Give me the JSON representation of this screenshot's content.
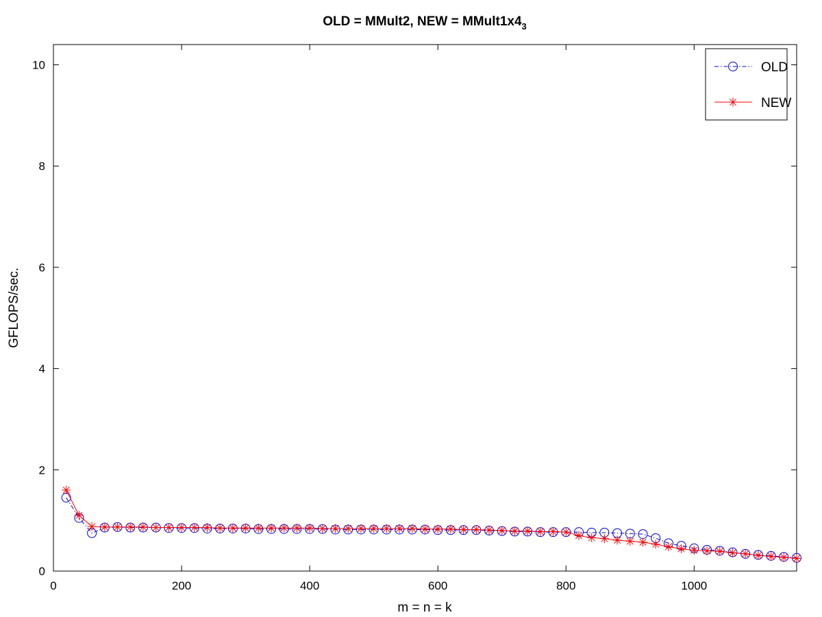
{
  "chart_data": {
    "type": "line",
    "title": "OLD = MMult2, NEW = MMult1x4",
    "title_subscript": "3",
    "xlabel": "m = n = k",
    "ylabel": "GFLOPS/sec.",
    "xlim": [
      0,
      1160
    ],
    "ylim": [
      0,
      10.4
    ],
    "xticks": [
      0,
      200,
      400,
      600,
      800,
      1000
    ],
    "yticks": [
      0,
      2,
      4,
      6,
      8,
      10
    ],
    "grid": false,
    "legend_position": "top-right",
    "x": [
      20,
      40,
      60,
      80,
      100,
      120,
      140,
      160,
      180,
      200,
      220,
      240,
      260,
      280,
      300,
      320,
      340,
      360,
      380,
      400,
      420,
      440,
      460,
      480,
      500,
      520,
      540,
      560,
      580,
      600,
      620,
      640,
      660,
      680,
      700,
      720,
      740,
      760,
      780,
      800,
      820,
      840,
      860,
      880,
      900,
      920,
      940,
      960,
      980,
      1000,
      1020,
      1040,
      1060,
      1080,
      1100,
      1120,
      1140,
      1160
    ],
    "series": [
      {
        "name": "OLD",
        "color": "#0000cc",
        "line_style": "dash-dot",
        "marker": "circle",
        "values": [
          1.45,
          1.05,
          0.75,
          0.86,
          0.87,
          0.86,
          0.86,
          0.86,
          0.85,
          0.85,
          0.85,
          0.84,
          0.84,
          0.84,
          0.84,
          0.83,
          0.83,
          0.83,
          0.83,
          0.83,
          0.83,
          0.82,
          0.82,
          0.82,
          0.82,
          0.82,
          0.82,
          0.82,
          0.82,
          0.81,
          0.81,
          0.81,
          0.81,
          0.8,
          0.79,
          0.78,
          0.78,
          0.77,
          0.77,
          0.77,
          0.77,
          0.76,
          0.76,
          0.75,
          0.74,
          0.73,
          0.65,
          0.55,
          0.5,
          0.45,
          0.42,
          0.4,
          0.37,
          0.34,
          0.32,
          0.3,
          0.28,
          0.26
        ]
      },
      {
        "name": "NEW",
        "color": "#ff0000",
        "line_style": "solid",
        "marker": "asterisk",
        "values": [
          1.6,
          1.1,
          0.88,
          0.87,
          0.87,
          0.87,
          0.87,
          0.86,
          0.86,
          0.86,
          0.86,
          0.86,
          0.85,
          0.85,
          0.85,
          0.85,
          0.85,
          0.85,
          0.85,
          0.85,
          0.84,
          0.84,
          0.84,
          0.84,
          0.84,
          0.84,
          0.84,
          0.84,
          0.83,
          0.83,
          0.83,
          0.82,
          0.82,
          0.81,
          0.8,
          0.79,
          0.79,
          0.78,
          0.78,
          0.77,
          0.7,
          0.66,
          0.64,
          0.61,
          0.59,
          0.57,
          0.53,
          0.48,
          0.44,
          0.41,
          0.4,
          0.39,
          0.36,
          0.34,
          0.31,
          0.29,
          0.27,
          0.25
        ]
      }
    ]
  }
}
